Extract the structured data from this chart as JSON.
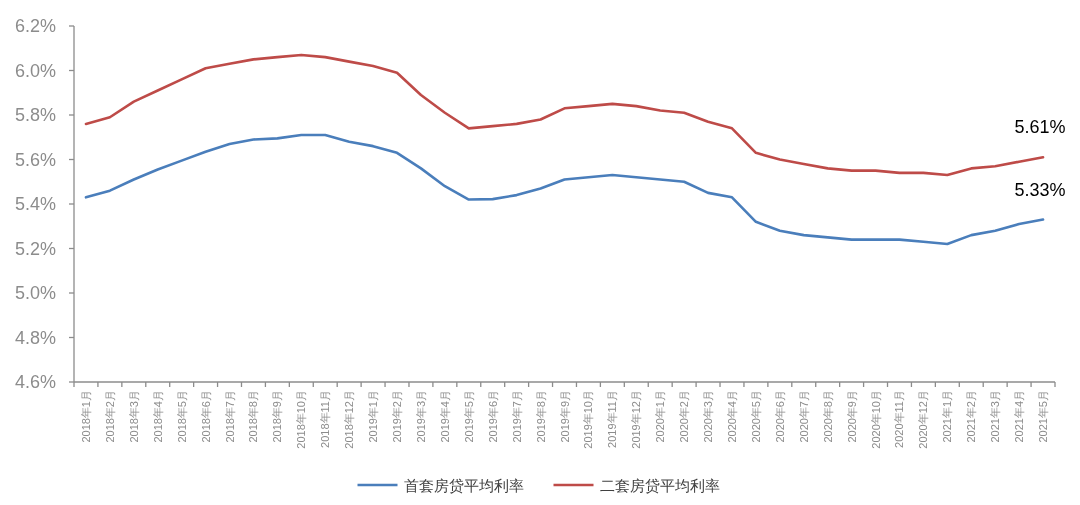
{
  "chart_data": {
    "type": "line",
    "categories": [
      "2018年1月",
      "2018年2月",
      "2018年3月",
      "2018年4月",
      "2018年5月",
      "2018年6月",
      "2018年7月",
      "2018年8月",
      "2018年9月",
      "2018年10月",
      "2018年11月",
      "2018年12月",
      "2019年1月",
      "2019年2月",
      "2019年3月",
      "2019年4月",
      "2019年5月",
      "2019年6月",
      "2019年7月",
      "2019年8月",
      "2019年9月",
      "2019年10月",
      "2019年11月",
      "2019年12月",
      "2020年1月",
      "2020年2月",
      "2020年3月",
      "2020年4月",
      "2020年5月",
      "2020年6月",
      "2020年7月",
      "2020年8月",
      "2020年9月",
      "2020年10月",
      "2020年11月",
      "2020年12月",
      "2021年1月",
      "2021年2月",
      "2021年3月",
      "2021年4月",
      "2021年5月"
    ],
    "series": [
      {
        "name": "首套房贷平均利率",
        "color": "#4a7ebb",
        "values": [
          5.43,
          5.46,
          5.51,
          5.555,
          5.595,
          5.635,
          5.67,
          5.69,
          5.695,
          5.71,
          5.71,
          5.68,
          5.66,
          5.63,
          5.56,
          5.48,
          5.42,
          5.422,
          5.44,
          5.47,
          5.51,
          5.52,
          5.53,
          5.52,
          5.51,
          5.5,
          5.45,
          5.43,
          5.32,
          5.28,
          5.26,
          5.25,
          5.24,
          5.24,
          5.24,
          5.23,
          5.22,
          5.26,
          5.28,
          5.31,
          5.33
        ]
      },
      {
        "name": "二套房贷平均利率",
        "color": "#be4b48",
        "values": [
          5.76,
          5.79,
          5.86,
          5.91,
          5.96,
          6.01,
          6.03,
          6.05,
          6.06,
          6.07,
          6.06,
          6.04,
          6.02,
          5.99,
          5.89,
          5.81,
          5.74,
          5.75,
          5.76,
          5.78,
          5.83,
          5.84,
          5.85,
          5.84,
          5.82,
          5.81,
          5.77,
          5.74,
          5.63,
          5.6,
          5.58,
          5.56,
          5.55,
          5.55,
          5.54,
          5.54,
          5.53,
          5.56,
          5.57,
          5.59,
          5.61
        ]
      }
    ],
    "ylim": [
      4.6,
      6.2
    ],
    "yticks": [
      {
        "value": 4.6,
        "label": "4.6%"
      },
      {
        "value": 4.8,
        "label": "4.8%"
      },
      {
        "value": 5.0,
        "label": "5.0%"
      },
      {
        "value": 5.2,
        "label": "5.2%"
      },
      {
        "value": 5.4,
        "label": "5.4%"
      },
      {
        "value": 5.6,
        "label": "5.6%"
      },
      {
        "value": 5.8,
        "label": "5.8%"
      },
      {
        "value": 6.0,
        "label": "6.0%"
      },
      {
        "value": 6.2,
        "label": "6.2%"
      }
    ],
    "annotations": [
      {
        "text": "5.61%",
        "x": "2021年5月",
        "y": 5.61
      },
      {
        "text": "5.33%",
        "x": "2021年5月",
        "y": 5.33
      }
    ],
    "legend": "bottom"
  }
}
